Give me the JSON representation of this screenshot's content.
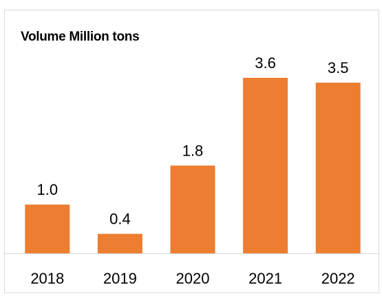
{
  "colors": {
    "bar": "#ED7D31",
    "axis": "#d9d9d9"
  },
  "chart_data": {
    "type": "bar",
    "title": "Volume Million tons",
    "xlabel": "",
    "ylabel": "",
    "categories": [
      "2018",
      "2019",
      "2020",
      "2021",
      "2022"
    ],
    "values": [
      1.0,
      0.4,
      1.8,
      3.6,
      3.5
    ],
    "value_labels": [
      "1.0",
      "0.4",
      "1.8",
      "3.6",
      "3.5"
    ],
    "ylim": [
      0,
      3.6
    ],
    "grid": false,
    "legend": "none"
  }
}
